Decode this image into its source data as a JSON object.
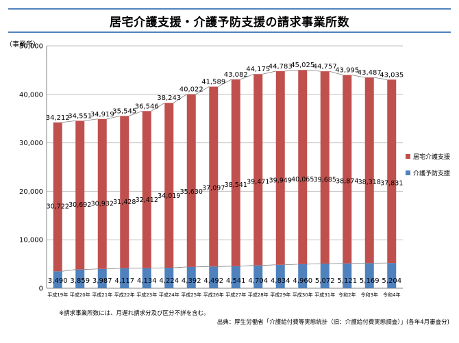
{
  "title": "居宅介護支援・介護予防支援の請求事業所数",
  "y_unit": "（事業所）",
  "note": "※請求事業所数には、月遅れ請求分及び区分不詳を含む。",
  "source": "出典：厚生労働省「介護給付費等実態統計（旧：介護給付費実態調査）」(各年4月審査分)",
  "colors": {
    "red": "#c0504d",
    "blue": "#4f81bd"
  },
  "chart_data": {
    "type": "bar",
    "stacked": true,
    "categories": [
      "平成19年",
      "平成20年",
      "平成21年",
      "平成22年",
      "平成23年",
      "平成24年",
      "平成25年",
      "平成26年",
      "平成27年",
      "平成28年",
      "平成29年",
      "平成30年",
      "平成31年",
      "令和2年",
      "令和3年",
      "令和4年"
    ],
    "series": [
      {
        "name": "介護予防支援",
        "color": "#4f81bd",
        "values": [
          3490,
          3859,
          3987,
          4117,
          4134,
          4224,
          4392,
          4492,
          4541,
          4704,
          4834,
          4960,
          5072,
          5121,
          5169,
          5204
        ],
        "labels": [
          "3,490",
          "3,859",
          "3,987",
          "4,117",
          "4,134",
          "4,224",
          "4,392",
          "4,492",
          "4,541",
          "4,704",
          "4,834",
          "4,960",
          "5,072",
          "5,121",
          "5,169",
          "5,204"
        ]
      },
      {
        "name": "居宅介護支援",
        "color": "#c0504d",
        "values": [
          30722,
          30692,
          30932,
          31428,
          32412,
          34019,
          35630,
          37097,
          38541,
          39471,
          39949,
          40065,
          39685,
          38874,
          38318,
          37831
        ],
        "labels": [
          "30,722",
          "30,692",
          "30,932",
          "31,428",
          "32,412",
          "34,019",
          "35,630",
          "37,097",
          "38,541",
          "39,471",
          "39,949",
          "40,065",
          "39,685",
          "38,874",
          "38,318",
          "37,831"
        ]
      }
    ],
    "totals": [
      34212,
      34551,
      34919,
      35545,
      36546,
      38243,
      40022,
      41589,
      43082,
      44175,
      44783,
      45025,
      44757,
      43995,
      43487,
      43035
    ],
    "total_labels": [
      "34,212",
      "34,551",
      "34,919",
      "35,545",
      "36,546",
      "38,243",
      "40,022",
      "41,589",
      "43,082",
      "44,175",
      "44,783",
      "45,025",
      "44,757",
      "43,995",
      "43,487",
      "43,035"
    ],
    "ylim": [
      0,
      50000
    ],
    "yticks": [
      0,
      10000,
      20000,
      30000,
      40000,
      50000
    ],
    "ytick_labels": [
      "0",
      "10,000",
      "20,000",
      "30,000",
      "40,000",
      "50,000"
    ],
    "grid": true,
    "legend": [
      "居宅介護支援",
      "介護予防支援"
    ],
    "legend_position": "right"
  }
}
